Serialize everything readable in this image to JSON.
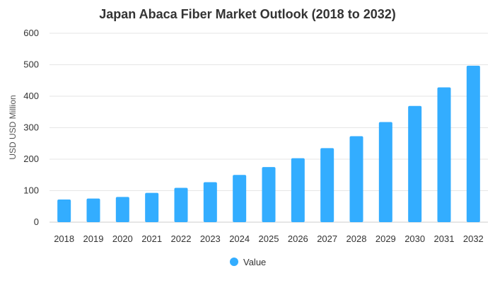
{
  "colors": {
    "bar": "#33adff",
    "grid": "#e6e6e6",
    "text": "#333333"
  },
  "chart_data": {
    "type": "bar",
    "title": "Japan Abaca Fiber Market Outlook (2018 to 2032)",
    "xlabel": "",
    "ylabel": "USD USD Million",
    "ylim": [
      0,
      600
    ],
    "yticks": [
      0,
      100,
      200,
      300,
      400,
      500,
      600
    ],
    "grid": true,
    "legend_position": "bottom",
    "categories": [
      "2018",
      "2019",
      "2020",
      "2021",
      "2022",
      "2023",
      "2024",
      "2025",
      "2026",
      "2027",
      "2028",
      "2029",
      "2030",
      "2031",
      "2032"
    ],
    "series": [
      {
        "name": "Value",
        "values": [
          72,
          75,
          80,
          93,
          109,
          127,
          150,
          175,
          203,
          235,
          273,
          318,
          369,
          428,
          497
        ]
      }
    ]
  }
}
